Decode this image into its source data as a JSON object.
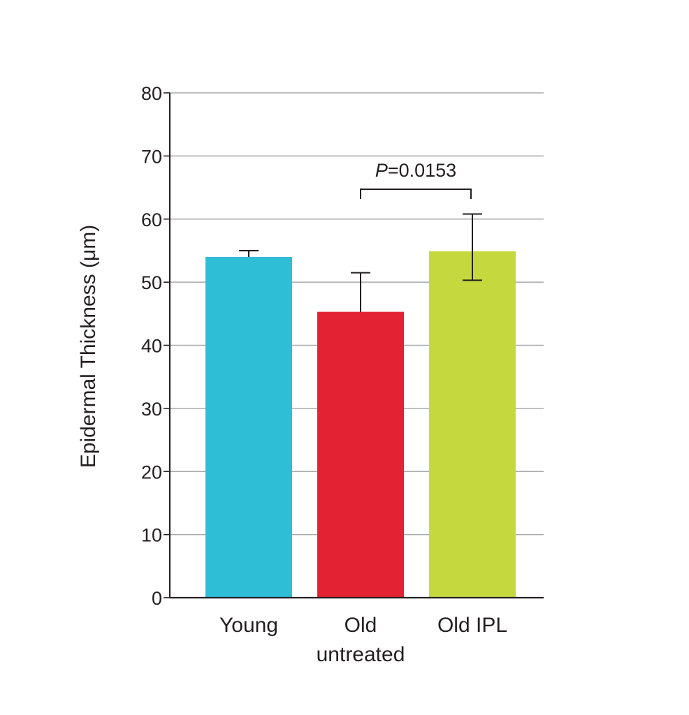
{
  "chart_data": {
    "type": "bar",
    "title": "",
    "xlabel": "",
    "ylabel": "Epidermal Thickness (μm)",
    "ylim": [
      0,
      80
    ],
    "yticks": [
      0,
      10,
      20,
      30,
      40,
      50,
      60,
      70,
      80
    ],
    "grid": true,
    "legend": "none",
    "categories": [
      [
        "Young"
      ],
      [
        "Old",
        "untreated"
      ],
      [
        "Old IPL"
      ]
    ],
    "series": [
      {
        "values": [
          54,
          45.3,
          54.9
        ],
        "error_upper": [
          55,
          51.5,
          60.8
        ],
        "error_lower": [
          null,
          null,
          50.3
        ],
        "colors": [
          "#2ebed6",
          "#e32233",
          "#c5d93f"
        ]
      }
    ],
    "annotation": {
      "p_italic": "P",
      "p_rest": "=0.0153",
      "from_category": 1,
      "to_category": 2
    },
    "colors": {
      "gridline": "#a7a9ac",
      "axis": "#231f20",
      "text": "#231f20"
    }
  }
}
